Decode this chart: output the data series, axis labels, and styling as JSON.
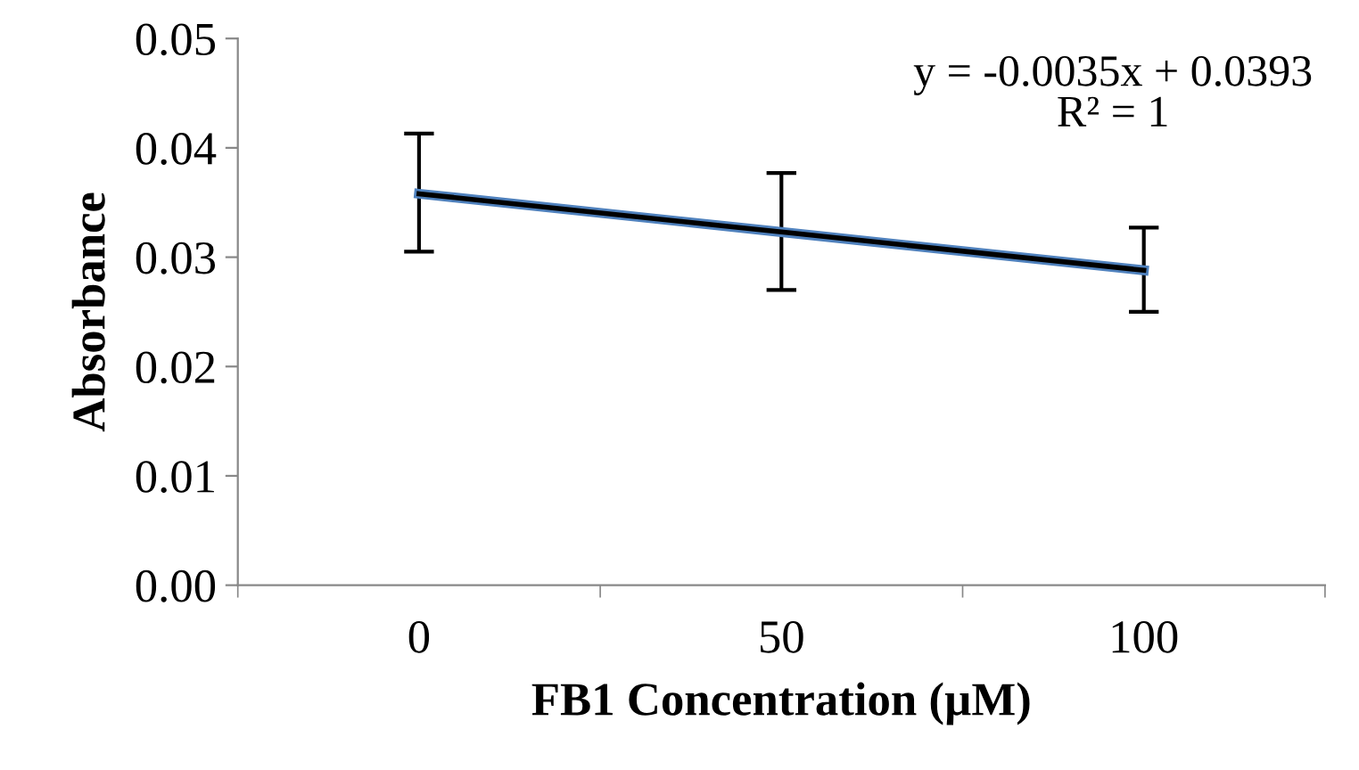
{
  "chart_data": {
    "type": "line",
    "xlabel": "FB1 Concentration (µM)",
    "ylabel": "Absorbance",
    "categories": [
      "0",
      "50",
      "100"
    ],
    "series": [
      {
        "color": "#4f81bd",
        "values": [
          0.0358,
          0.0323,
          0.0288
        ],
        "errors": [
          [
            0.0305,
            0.0413
          ],
          [
            0.027,
            0.0377
          ],
          [
            0.025,
            0.0327
          ]
        ]
      },
      {
        "type": "line",
        "color": "#000000",
        "x": [
          "0",
          "50",
          "100"
        ],
        "values": [
          0.0358,
          0.0323,
          0.0288
        ]
      }
    ],
    "ylim": [
      0,
      0.05
    ],
    "yticks": [
      {
        "value": 0,
        "label": "0.00"
      },
      {
        "value": 0.01,
        "label": "0.01"
      },
      {
        "value": 0.02,
        "label": "0.02"
      },
      {
        "value": 0.03,
        "label": "0.03"
      },
      {
        "value": 0.04,
        "label": "0.04"
      },
      {
        "value": 0.05,
        "label": "0.05"
      }
    ],
    "annotations": [
      "y = -0.0035x + 0.0393\nR² = 1"
    ],
    "grid": false,
    "legend": false,
    "marker": "none"
  }
}
